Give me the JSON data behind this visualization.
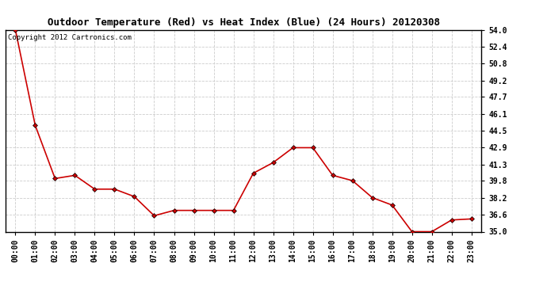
{
  "title": "Outdoor Temperature (Red) vs Heat Index (Blue) (24 Hours) 20120308",
  "copyright_text": "Copyright 2012 Cartronics.com",
  "x_labels": [
    "00:00",
    "01:00",
    "02:00",
    "03:00",
    "04:00",
    "05:00",
    "06:00",
    "07:00",
    "08:00",
    "09:00",
    "10:00",
    "11:00",
    "12:00",
    "13:00",
    "14:00",
    "15:00",
    "16:00",
    "17:00",
    "18:00",
    "19:00",
    "20:00",
    "21:00",
    "22:00",
    "23:00"
  ],
  "temp_values": [
    54.0,
    45.0,
    40.0,
    40.3,
    39.0,
    39.0,
    38.3,
    36.5,
    37.0,
    37.0,
    37.0,
    37.0,
    40.5,
    41.5,
    42.9,
    42.9,
    40.3,
    39.8,
    38.2,
    37.5,
    35.0,
    35.0,
    36.1,
    36.2
  ],
  "line_color_temp": "#cc0000",
  "marker": "D",
  "marker_size": 3,
  "background_color": "#ffffff",
  "grid_color": "#cccccc",
  "grid_style": "--",
  "ylim": [
    35.0,
    54.0
  ],
  "yticks": [
    35.0,
    36.6,
    38.2,
    39.8,
    41.3,
    42.9,
    44.5,
    46.1,
    47.7,
    49.2,
    50.8,
    52.4,
    54.0
  ],
  "title_fontsize": 9,
  "tick_fontsize": 7,
  "copyright_fontsize": 6.5
}
